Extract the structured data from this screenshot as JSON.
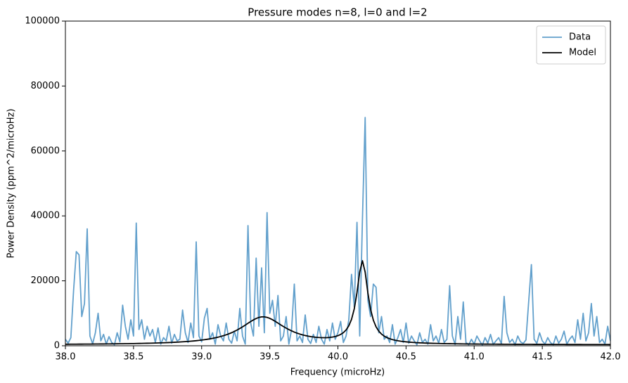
{
  "chart_data": {
    "type": "line",
    "title": "Pressure modes n=8, l=0 and l=2",
    "x_label": "Frequency (microHz)",
    "y_label": "Power Density (ppm^2/microHz)",
    "legend": "upper right",
    "x": [
      38.0,
      38.02,
      38.04,
      38.06,
      38.08,
      38.1,
      38.12,
      38.14,
      38.16,
      38.18,
      38.2,
      38.22,
      38.24,
      38.26,
      38.28,
      38.3,
      38.32,
      38.34,
      38.36,
      38.38,
      38.4,
      38.42,
      38.44,
      38.46,
      38.48,
      38.5,
      38.52,
      38.54,
      38.56,
      38.58,
      38.6,
      38.62,
      38.64,
      38.66,
      38.68,
      38.7,
      38.72,
      38.74,
      38.76,
      38.78,
      38.8,
      38.82,
      38.84,
      38.86,
      38.88,
      38.9,
      38.92,
      38.94,
      38.96,
      38.98,
      39.0,
      39.02,
      39.04,
      39.06,
      39.08,
      39.1,
      39.12,
      39.14,
      39.16,
      39.18,
      39.2,
      39.22,
      39.24,
      39.26,
      39.28,
      39.3,
      39.32,
      39.34,
      39.36,
      39.38,
      39.4,
      39.42,
      39.44,
      39.46,
      39.48,
      39.5,
      39.52,
      39.54,
      39.56,
      39.58,
      39.6,
      39.62,
      39.64,
      39.66,
      39.68,
      39.7,
      39.72,
      39.74,
      39.76,
      39.78,
      39.8,
      39.82,
      39.84,
      39.86,
      39.88,
      39.9,
      39.92,
      39.94,
      39.96,
      39.98,
      40.0,
      40.02,
      40.04,
      40.06,
      40.08,
      40.1,
      40.12,
      40.14,
      40.16,
      40.18,
      40.2,
      40.22,
      40.24,
      40.26,
      40.28,
      40.3,
      40.32,
      40.34,
      40.36,
      40.38,
      40.4,
      40.42,
      40.44,
      40.46,
      40.48,
      40.5,
      40.52,
      40.54,
      40.56,
      40.58,
      40.6,
      40.62,
      40.64,
      40.66,
      40.68,
      40.7,
      40.72,
      40.74,
      40.76,
      40.78,
      40.8,
      40.82,
      40.84,
      40.86,
      40.88,
      40.9,
      40.92,
      40.94,
      40.96,
      40.98,
      41.0,
      41.02,
      41.04,
      41.06,
      41.08,
      41.1,
      41.12,
      41.14,
      41.16,
      41.18,
      41.2,
      41.22,
      41.24,
      41.26,
      41.28,
      41.3,
      41.32,
      41.34,
      41.36,
      41.38,
      41.4,
      41.42,
      41.44,
      41.46,
      41.48,
      41.5,
      41.52,
      41.54,
      41.56,
      41.58,
      41.6,
      41.62,
      41.64,
      41.66,
      41.68,
      41.7,
      41.72,
      41.74,
      41.76,
      41.78,
      41.8,
      41.82,
      41.84,
      41.86,
      41.88,
      41.9,
      41.92,
      41.94,
      41.96,
      41.98,
      42.0
    ],
    "series": [
      {
        "name": "Data",
        "color": "#62a0cc",
        "values": [
          2000,
          800,
          2500,
          17000,
          29000,
          28000,
          9000,
          13000,
          36000,
          3000,
          600,
          4000,
          10000,
          1500,
          3500,
          500,
          2800,
          1000,
          300,
          4000,
          1200,
          12500,
          6000,
          2000,
          8000,
          3000,
          37800,
          5000,
          8000,
          2000,
          6000,
          3000,
          5000,
          1000,
          5500,
          500,
          2500,
          1500,
          6000,
          800,
          3500,
          1500,
          2000,
          11000,
          4000,
          1000,
          7000,
          2500,
          32000,
          3000,
          1200,
          8500,
          11500,
          2000,
          4000,
          500,
          6500,
          3000,
          1500,
          7000,
          2000,
          800,
          4500,
          1500,
          11500,
          3000,
          500,
          37000,
          7000,
          3000,
          27000,
          6000,
          24000,
          4000,
          41000,
          10000,
          14000,
          6000,
          15500,
          1500,
          3000,
          9000,
          500,
          5000,
          19000,
          1500,
          3000,
          1000,
          9500,
          2000,
          700,
          3500,
          1000,
          6000,
          2000,
          500,
          5000,
          1500,
          7000,
          2000,
          4000,
          7500,
          1000,
          3000,
          8000,
          22000,
          12000,
          38000,
          3000,
          39000,
          70300,
          14000,
          9000,
          19000,
          18000,
          4000,
          9000,
          2000,
          3000,
          1000,
          6500,
          500,
          2500,
          5000,
          1000,
          7000,
          800,
          3000,
          1500,
          300,
          4000,
          1000,
          2000,
          500,
          6500,
          1500,
          3000,
          800,
          5000,
          1000,
          2000,
          18500,
          3000,
          400,
          9000,
          2000,
          13500,
          1000,
          300,
          2000,
          500,
          3000,
          1500,
          200,
          2500,
          800,
          3500,
          400,
          1500,
          2500,
          600,
          15200,
          4000,
          1000,
          2000,
          300,
          3000,
          1200,
          700,
          1800,
          13500,
          25000,
          2000,
          700,
          4000,
          1500,
          500,
          2500,
          1000,
          300,
          3000,
          800,
          2000,
          4500,
          500,
          2000,
          3000,
          1000,
          8000,
          2000,
          10000,
          1500,
          4000,
          13000,
          3000,
          9000,
          1000,
          2000,
          500,
          6000,
          1500
        ]
      },
      {
        "name": "Model",
        "color": "#000000",
        "values": [
          472,
          477,
          482,
          486,
          491,
          498,
          503,
          509,
          515,
          522,
          528,
          536,
          543,
          550,
          559,
          568,
          576,
          586,
          596,
          607,
          618,
          630,
          642,
          655,
          669,
          684,
          700,
          716,
          734,
          752,
          772,
          793,
          816,
          840,
          866,
          894,
          924,
          957,
          992,
          1029,
          1070,
          1114,
          1162,
          1214,
          1272,
          1334,
          1402,
          1477,
          1559,
          1650,
          1751,
          1862,
          1986,
          2124,
          2278,
          2451,
          2639,
          2856,
          3101,
          3375,
          3683,
          4029,
          4414,
          4843,
          5313,
          5822,
          6360,
          6916,
          7463,
          7971,
          8404,
          8722,
          8894,
          8901,
          8742,
          8436,
          8017,
          7523,
          6990,
          6450,
          5927,
          5436,
          4984,
          4575,
          4211,
          3889,
          3608,
          3363,
          3151,
          2972,
          2820,
          2699,
          2603,
          2537,
          2495,
          2485,
          2506,
          2567,
          2676,
          2848,
          3105,
          3483,
          4038,
          4870,
          6138,
          8142,
          11364,
          16386,
          22735,
          26193,
          22674,
          16264,
          11181,
          7895,
          5826,
          4491,
          3589,
          2960,
          2504,
          2164,
          1904,
          1700,
          1536,
          1404,
          1292,
          1201,
          1120,
          1054,
          995,
          947,
          903,
          864,
          829,
          798,
          770,
          744,
          722,
          701,
          681,
          663,
          647,
          631,
          617,
          604,
          592,
          581,
          569,
          559,
          551,
          542,
          533,
          526,
          517,
          511,
          504,
          498,
          491,
          486,
          481,
          475,
          471,
          465,
          461,
          457,
          452,
          448,
          445,
          441,
          437,
          434,
          430,
          428,
          425,
          422,
          419,
          416,
          414,
          411,
          409,
          406,
          404,
          402,
          400,
          398,
          396,
          394,
          392,
          390,
          388,
          387,
          385,
          384,
          382,
          380,
          379,
          377,
          376,
          375,
          374,
          372,
          371
        ]
      }
    ],
    "xlim": [
      38,
      42
    ],
    "xticks": [
      {
        "value": 38,
        "label": "38.0"
      },
      {
        "value": 38.5,
        "label": "38.5"
      },
      {
        "value": 39,
        "label": "39.0"
      },
      {
        "value": 39.5,
        "label": "39.5"
      },
      {
        "value": 40,
        "label": "40.0"
      },
      {
        "value": 40.5,
        "label": "40.5"
      },
      {
        "value": 41,
        "label": "41.0"
      },
      {
        "value": 41.5,
        "label": "41.5"
      },
      {
        "value": 42,
        "label": "42.0"
      }
    ],
    "ylim": [
      0,
      100000
    ],
    "yticks": [
      0,
      20000,
      40000,
      60000,
      80000,
      100000
    ]
  }
}
